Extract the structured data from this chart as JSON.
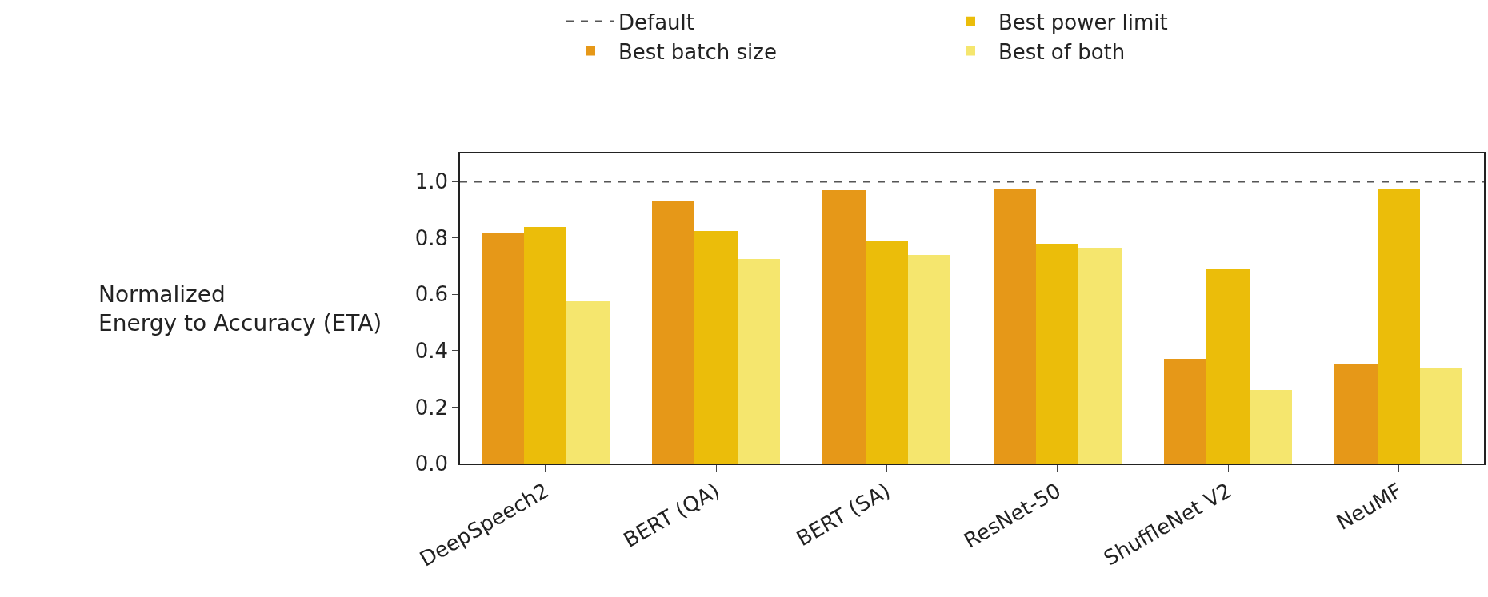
{
  "chart_data": {
    "type": "bar",
    "ylabel": "Normalized\nEnergy to Accuracy (ETA)",
    "categories": [
      "DeepSpeech2",
      "BERT (QA)",
      "BERT (SA)",
      "ResNet-50",
      "ShuffleNet V2",
      "NeuMF"
    ],
    "series": [
      {
        "name": "Best batch size",
        "color": "#e69818",
        "values": [
          0.82,
          0.93,
          0.97,
          0.975,
          0.37,
          0.355
        ]
      },
      {
        "name": "Best power limit",
        "color": "#ebbd0a",
        "values": [
          0.84,
          0.825,
          0.79,
          0.78,
          0.69,
          0.975
        ]
      },
      {
        "name": "Best of both",
        "color": "#f5e66e",
        "values": [
          0.575,
          0.725,
          0.74,
          0.765,
          0.26,
          0.34
        ]
      }
    ],
    "ref_lines": [
      {
        "axis": "y",
        "value": 1.0,
        "label": "Default",
        "color": "#555555",
        "line_style": "dashed"
      }
    ],
    "ylim": [
      0,
      1.1
    ],
    "yticks": [
      {
        "value": 0,
        "label": "0.0"
      },
      {
        "value": 0.2,
        "label": "0.2"
      },
      {
        "value": 0.4,
        "label": "0.4"
      },
      {
        "value": 0.6,
        "label": "0.6"
      },
      {
        "value": 0.8,
        "label": "0.8"
      },
      {
        "value": 1.0,
        "label": "1.0"
      }
    ],
    "legend": "top"
  }
}
